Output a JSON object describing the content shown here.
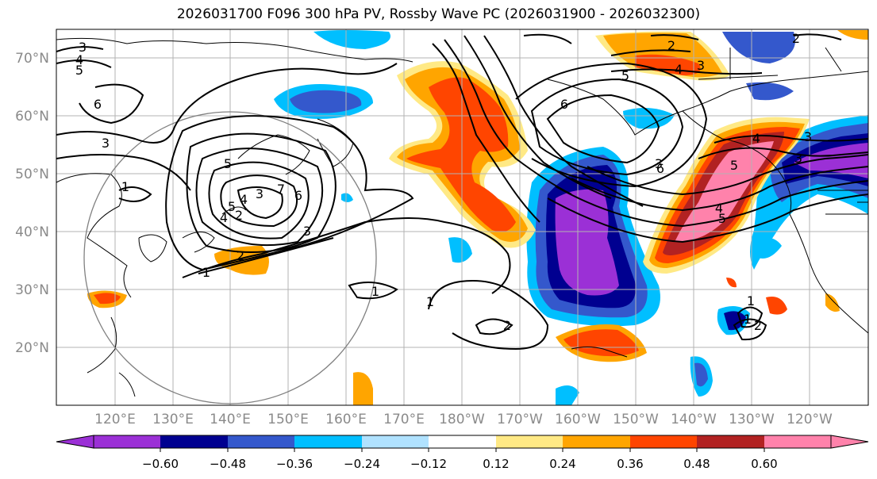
{
  "title": "2026031700 F096 300 hPa PV, Rossby Wave PC (2026031900 - 2026032300)",
  "lat_labels": [
    "70°N",
    "60°N",
    "50°N",
    "40°N",
    "30°N",
    "20°N"
  ],
  "lon_labels": [
    "120°E",
    "130°E",
    "140°E",
    "150°E",
    "160°E",
    "170°E",
    "180°W",
    "170°W",
    "160°W",
    "150°W",
    "140°W",
    "130°W",
    "120°W"
  ],
  "colorbar": {
    "colors": [
      "#9b30d6",
      "#000090",
      "#3458cc",
      "#00bfff",
      "#b0e2ff",
      "#ffffff",
      "#ffe985",
      "#ffa500",
      "#ff4500",
      "#b22222",
      "#ff82ab"
    ],
    "labels": [
      "−0.60",
      "−0.48",
      "−0.36",
      "−0.24",
      "−0.12",
      "0.12",
      "0.24",
      "0.36",
      "0.48",
      "0.60"
    ]
  },
  "contour_labels": [
    "3",
    "4",
    "5",
    "6",
    "3",
    "1",
    "5",
    "4",
    "3",
    "2",
    "4",
    "3",
    "5",
    "6",
    "6",
    "4",
    "5",
    "4",
    "3",
    "2",
    "7",
    "6",
    "5",
    "3",
    "2",
    "1",
    "1",
    "2",
    "1",
    "1",
    "5",
    "4",
    "3",
    "2",
    "1",
    "3",
    "2"
  ]
}
